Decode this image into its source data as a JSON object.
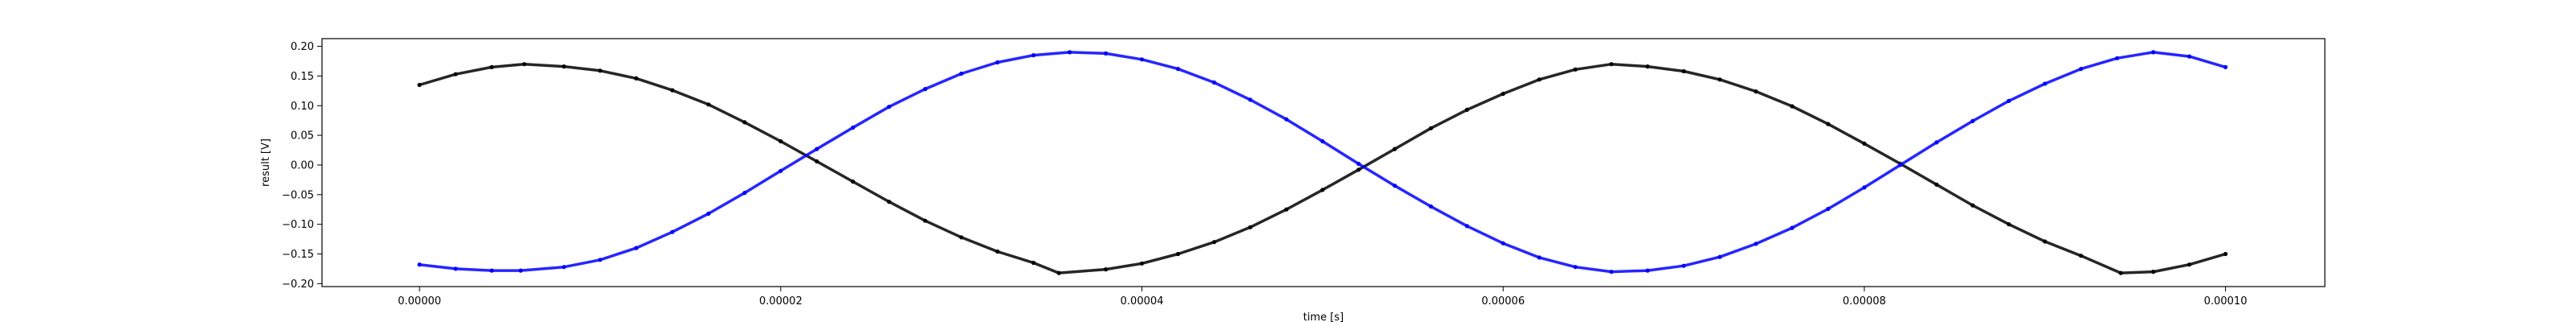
{
  "chart_data": {
    "type": "scatter",
    "title": "",
    "xlabel": "time [s]",
    "ylabel": "result [V]",
    "xlim": [
      -5.4e-06,
      0.0001055
    ],
    "ylim": [
      -0.205,
      0.213
    ],
    "grid": false,
    "x_ticks": [
      0,
      2e-05,
      4e-05,
      6e-05,
      8e-05,
      0.0001
    ],
    "x_tick_labels": [
      "0.00000",
      "0.00002",
      "0.00004",
      "0.00006",
      "0.00008",
      "0.00010"
    ],
    "y_ticks": [
      -0.2,
      -0.15,
      -0.1,
      -0.05,
      0.0,
      0.05,
      0.1,
      0.15,
      0.2
    ],
    "y_tick_labels": [
      "−0.20",
      "−0.15",
      "−0.10",
      "−0.05",
      "0.00",
      "0.05",
      "0.10",
      "0.15",
      "0.20"
    ],
    "series": [
      {
        "color": "#000000",
        "x": [
          0,
          2e-06,
          4e-06,
          5.8e-06,
          8e-06,
          1e-05,
          1.2e-05,
          1.4e-05,
          1.6e-05,
          1.8e-05,
          2e-05,
          2.2e-05,
          2.4e-05,
          2.6e-05,
          2.8e-05,
          3e-05,
          3.2e-05,
          3.4e-05,
          3.54e-05,
          3.8e-05,
          4e-05,
          4.2e-05,
          4.4e-05,
          4.6e-05,
          4.8e-05,
          5e-05,
          5.2e-05,
          5.4e-05,
          5.6e-05,
          5.8e-05,
          6e-05,
          6.2e-05,
          6.4e-05,
          6.6e-05,
          6.8e-05,
          7e-05,
          7.2e-05,
          7.4e-05,
          7.6e-05,
          7.8e-05,
          8e-05,
          8.2e-05,
          8.4e-05,
          8.6e-05,
          8.8e-05,
          9e-05,
          9.2e-05,
          9.42e-05,
          9.6e-05,
          9.8e-05,
          0.0001
        ],
        "y": [
          0.135,
          0.153,
          0.165,
          0.17,
          0.166,
          0.159,
          0.146,
          0.126,
          0.102,
          0.072,
          0.04,
          0.006,
          -0.028,
          -0.062,
          -0.094,
          -0.122,
          -0.146,
          -0.165,
          -0.182,
          -0.176,
          -0.166,
          -0.15,
          -0.13,
          -0.105,
          -0.075,
          -0.042,
          -0.008,
          0.027,
          0.062,
          0.093,
          0.12,
          0.144,
          0.161,
          0.17,
          0.166,
          0.158,
          0.144,
          0.124,
          0.099,
          0.069,
          0.036,
          0.002,
          -0.033,
          -0.068,
          -0.1,
          -0.129,
          -0.153,
          -0.182,
          -0.18,
          -0.168,
          -0.15
        ]
      },
      {
        "color": "#0000ff",
        "x": [
          0,
          2e-06,
          4e-06,
          5.6e-06,
          8e-06,
          1e-05,
          1.2e-05,
          1.4e-05,
          1.6e-05,
          1.8e-05,
          2e-05,
          2.2e-05,
          2.4e-05,
          2.6e-05,
          2.8e-05,
          3e-05,
          3.2e-05,
          3.4e-05,
          3.6e-05,
          3.8e-05,
          4e-05,
          4.2e-05,
          4.4e-05,
          4.6e-05,
          4.8e-05,
          5e-05,
          5.2e-05,
          5.4e-05,
          5.6e-05,
          5.8e-05,
          6e-05,
          6.2e-05,
          6.4e-05,
          6.6e-05,
          6.8e-05,
          7e-05,
          7.2e-05,
          7.4e-05,
          7.6e-05,
          7.8e-05,
          8e-05,
          8.2e-05,
          8.4e-05,
          8.6e-05,
          8.8e-05,
          9e-05,
          9.2e-05,
          9.4e-05,
          9.6e-05,
          9.8e-05,
          0.0001
        ],
        "y": [
          -0.168,
          -0.175,
          -0.178,
          -0.178,
          -0.172,
          -0.16,
          -0.14,
          -0.113,
          -0.082,
          -0.047,
          -0.01,
          0.027,
          0.063,
          0.098,
          0.128,
          0.154,
          0.173,
          0.185,
          0.19,
          0.188,
          0.178,
          0.162,
          0.139,
          0.11,
          0.077,
          0.04,
          0.002,
          -0.035,
          -0.07,
          -0.103,
          -0.132,
          -0.156,
          -0.172,
          -0.18,
          -0.178,
          -0.17,
          -0.155,
          -0.133,
          -0.106,
          -0.074,
          -0.038,
          0,
          0.038,
          0.074,
          0.108,
          0.137,
          0.162,
          0.18,
          0.19,
          0.183,
          0.165
        ]
      }
    ]
  }
}
